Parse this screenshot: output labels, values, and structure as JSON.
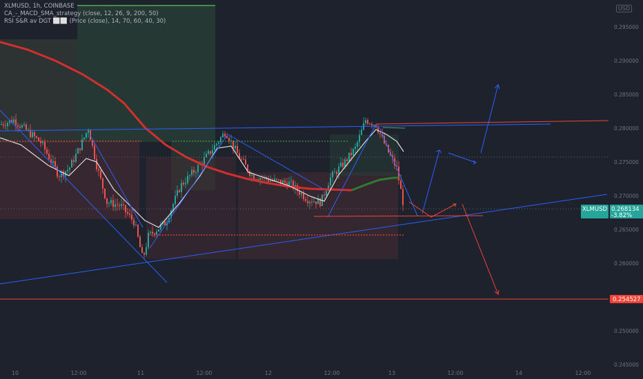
{
  "legend": {
    "line1": "XLMUSD, 1h, COINBASE",
    "line2": "CA_-_MACD_SMA_strategy (close, 12, 26, 9, 200, 50)",
    "line3": "RSI S&R av DGT ⬜⬜ (Price (close), 14, 70, 60, 40, 30)"
  },
  "currency_tag": "USD",
  "colors": {
    "background": "#1e222d",
    "up_candle": "#26a69a",
    "down_candle": "#ef5350",
    "sma200": "#d32f2f",
    "sma50": "#2e7d32",
    "ema_fast": "#e0e0e0",
    "trendline": "#2962ff",
    "horizontal_red": "#f44336",
    "price_badge": "#26a69a",
    "target_badge": "#f44336"
  },
  "chart_data": {
    "type": "line",
    "title": "XLMUSD, 1h, COINBASE",
    "ylim": [
      0.2435,
      0.2985
    ],
    "y_ticks": [
      "0.295000",
      "0.290000",
      "0.285000",
      "0.280000",
      "0.275000",
      "0.270000",
      "0.265000",
      "0.260000",
      "0.255000",
      "0.250000",
      "0.245000"
    ],
    "x_ticks": [
      "10",
      "12:00",
      "11",
      "12:00",
      "12",
      "12:00",
      "13",
      "12:00",
      "14",
      "12:00"
    ],
    "series": [
      {
        "name": "XLMUSD",
        "type": "candlestick"
      }
    ],
    "last_price": {
      "symbol": "XLMUSD",
      "value": "0.268134",
      "change": "-3.82%"
    },
    "target_level": "0.254527",
    "grid": false
  }
}
